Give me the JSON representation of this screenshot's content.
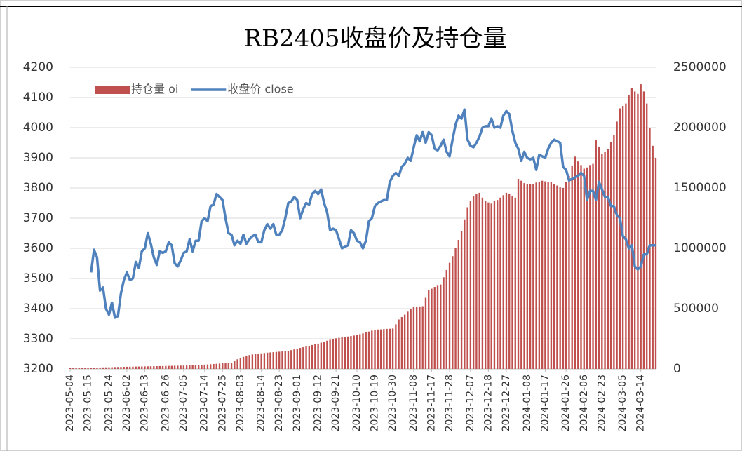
{
  "chart_data": {
    "type": "combo",
    "title": "RB2405收盘价及持仓量",
    "categories": [
      "2023-05-04",
      null,
      null,
      null,
      null,
      null,
      "2023-05-15",
      null,
      null,
      null,
      null,
      null,
      null,
      "2023-05-24",
      null,
      null,
      null,
      null,
      null,
      "2023-06-02",
      null,
      null,
      null,
      null,
      null,
      "2023-06-13",
      null,
      null,
      null,
      null,
      null,
      null,
      "2023-06-26",
      null,
      null,
      null,
      null,
      null,
      "2023-07-05",
      null,
      null,
      null,
      null,
      null,
      null,
      "2023-07-14",
      null,
      null,
      null,
      null,
      null,
      "2023-07-25",
      null,
      null,
      null,
      null,
      null,
      "2023-08-03",
      null,
      null,
      null,
      null,
      null,
      null,
      "2023-08-14",
      null,
      null,
      null,
      null,
      null,
      "2023-08-23",
      null,
      null,
      null,
      null,
      null,
      "2023-09-01",
      null,
      null,
      null,
      null,
      null,
      null,
      "2023-09-12",
      null,
      null,
      null,
      null,
      null,
      "2023-09-21",
      null,
      null,
      null,
      null,
      null,
      null,
      "2023-10-10",
      null,
      null,
      null,
      null,
      null,
      "2023-10-19",
      null,
      null,
      null,
      null,
      null,
      "2023-10-30",
      null,
      null,
      null,
      null,
      null,
      null,
      "2023-11-08",
      null,
      null,
      null,
      null,
      null,
      "2023-11-17",
      null,
      null,
      null,
      null,
      null,
      "2023-11-28",
      null,
      null,
      null,
      null,
      null,
      null,
      "2023-12-07",
      null,
      null,
      null,
      null,
      null,
      "2023-12-18",
      null,
      null,
      null,
      null,
      null,
      "2023-12-27",
      null,
      null,
      null,
      null,
      null,
      null,
      "2024-01-08",
      null,
      null,
      null,
      null,
      null,
      "2024-01-17",
      null,
      null,
      null,
      null,
      null,
      null,
      "2024-01-26",
      null,
      null,
      null,
      null,
      null,
      "2024-02-06",
      null,
      null,
      null,
      null,
      null,
      "2024-02-23",
      null,
      null,
      null,
      null,
      null,
      null,
      "2024-03-05",
      null,
      null,
      null,
      null,
      null,
      "2024-03-14",
      null,
      null,
      null,
      null,
      null
    ],
    "series": [
      {
        "name": "持仓量 oi",
        "type": "bar",
        "axis": "y2",
        "color": "#c0504d",
        "values": [
          8000,
          8000,
          8500,
          8500,
          9000,
          9000,
          9500,
          10000,
          10700,
          11300,
          12000,
          12600,
          13300,
          14000,
          14600,
          15300,
          16000,
          16600,
          17300,
          18000,
          18600,
          19300,
          19800,
          20000,
          20500,
          21100,
          21600,
          22100,
          22600,
          23200,
          23700,
          24200,
          24700,
          25300,
          25800,
          26300,
          26800,
          27400,
          27900,
          28400,
          28900,
          29500,
          30000,
          31800,
          33600,
          35500,
          37300,
          39100,
          40900,
          42700,
          44500,
          46400,
          48200,
          49000,
          50000,
          65000,
          80000,
          90000,
          100000,
          108000,
          115000,
          120000,
          123000,
          126000,
          129000,
          132000,
          135000,
          137000,
          139000,
          141000,
          143000,
          145000,
          147000,
          150000,
          156000,
          162000,
          168000,
          174000,
          180000,
          186000,
          192000,
          198000,
          204000,
          210000,
          218000,
          226000,
          234000,
          242000,
          250000,
          254000,
          258000,
          262000,
          265000,
          269000,
          273000,
          277000,
          280000,
          288000,
          295000,
          303000,
          310000,
          318000,
          325000,
          327000,
          328000,
          330000,
          332000,
          333000,
          335000,
          370000,
          410000,
          430000,
          450000,
          475000,
          495000,
          515000,
          517000,
          518000,
          520000,
          590000,
          655000,
          665000,
          680000,
          690000,
          700000,
          760000,
          820000,
          880000,
          935000,
          1000000,
          1070000,
          1140000,
          1240000,
          1340000,
          1390000,
          1430000,
          1450000,
          1460000,
          1420000,
          1390000,
          1380000,
          1370000,
          1390000,
          1400000,
          1420000,
          1440000,
          1460000,
          1450000,
          1430000,
          1420000,
          1575000,
          1560000,
          1540000,
          1535000,
          1530000,
          1530000,
          1545000,
          1550000,
          1560000,
          1555000,
          1550000,
          1550000,
          1535000,
          1520000,
          1505000,
          1500000,
          1550000,
          1600000,
          1680000,
          1760000,
          1720000,
          1690000,
          1660000,
          1670000,
          1690000,
          1700000,
          1900000,
          1840000,
          1780000,
          1800000,
          1820000,
          1880000,
          1940000,
          2050000,
          2160000,
          2180000,
          2200000,
          2270000,
          2330000,
          2300000,
          2280000,
          2360000,
          2300000,
          2200000,
          2000000,
          1850000,
          1750000
        ]
      },
      {
        "name": "收盘价 close",
        "type": "line",
        "axis": "y",
        "color": "#4f81bd",
        "values": [
          null,
          null,
          null,
          null,
          null,
          null,
          null,
          3520,
          3595,
          3570,
          3460,
          3470,
          3400,
          3380,
          3420,
          3370,
          3375,
          3450,
          3495,
          3520,
          3495,
          3500,
          3555,
          3535,
          3590,
          3600,
          3650,
          3615,
          3570,
          3545,
          3590,
          3585,
          3590,
          3620,
          3610,
          3550,
          3540,
          3560,
          3585,
          3590,
          3630,
          3590,
          3625,
          3625,
          3690,
          3700,
          3690,
          3740,
          3745,
          3780,
          3770,
          3760,
          3700,
          3650,
          3645,
          3610,
          3625,
          3615,
          3645,
          3615,
          3630,
          3640,
          3645,
          3620,
          3620,
          3660,
          3680,
          3665,
          3680,
          3645,
          3645,
          3660,
          3700,
          3750,
          3755,
          3770,
          3760,
          3700,
          3730,
          3750,
          3745,
          3780,
          3790,
          3780,
          3795,
          3750,
          3720,
          3660,
          3665,
          3660,
          3630,
          3600,
          3605,
          3610,
          3660,
          3650,
          3625,
          3620,
          3600,
          3625,
          3690,
          3700,
          3740,
          3750,
          3755,
          3760,
          3760,
          3820,
          3840,
          3850,
          3840,
          3870,
          3880,
          3900,
          3890,
          3935,
          3975,
          3955,
          3985,
          3950,
          3985,
          3975,
          3930,
          3925,
          3940,
          3960,
          3920,
          3905,
          3960,
          4010,
          4040,
          4030,
          4060,
          3960,
          3940,
          3935,
          3950,
          3970,
          4000,
          4005,
          4005,
          4030,
          4000,
          4005,
          4000,
          4040,
          4055,
          4045,
          3990,
          3950,
          3930,
          3890,
          3920,
          3900,
          3895,
          3900,
          3860,
          3910,
          3905,
          3900,
          3930,
          3950,
          3960,
          3955,
          3950,
          3870,
          3860,
          3825,
          3830,
          3835,
          3840,
          3850,
          3840,
          3760,
          3790,
          3790,
          3760,
          3820,
          3795,
          3770,
          3770,
          3740,
          3740,
          3710,
          3700,
          3640,
          3630,
          3600,
          3610,
          3540,
          3530,
          3540,
          3580,
          3580,
          3610,
          3610,
          3610
        ]
      }
    ],
    "ylim": [
      3200,
      4200
    ],
    "yticks": [
      3200,
      3300,
      3400,
      3500,
      3600,
      3700,
      3800,
      3900,
      4000,
      4100,
      4200
    ],
    "y2lim": [
      0,
      2500000
    ],
    "y2ticks": [
      0,
      500000,
      1000000,
      1500000,
      2000000,
      2500000
    ],
    "grid": true,
    "legend": "top-left"
  }
}
